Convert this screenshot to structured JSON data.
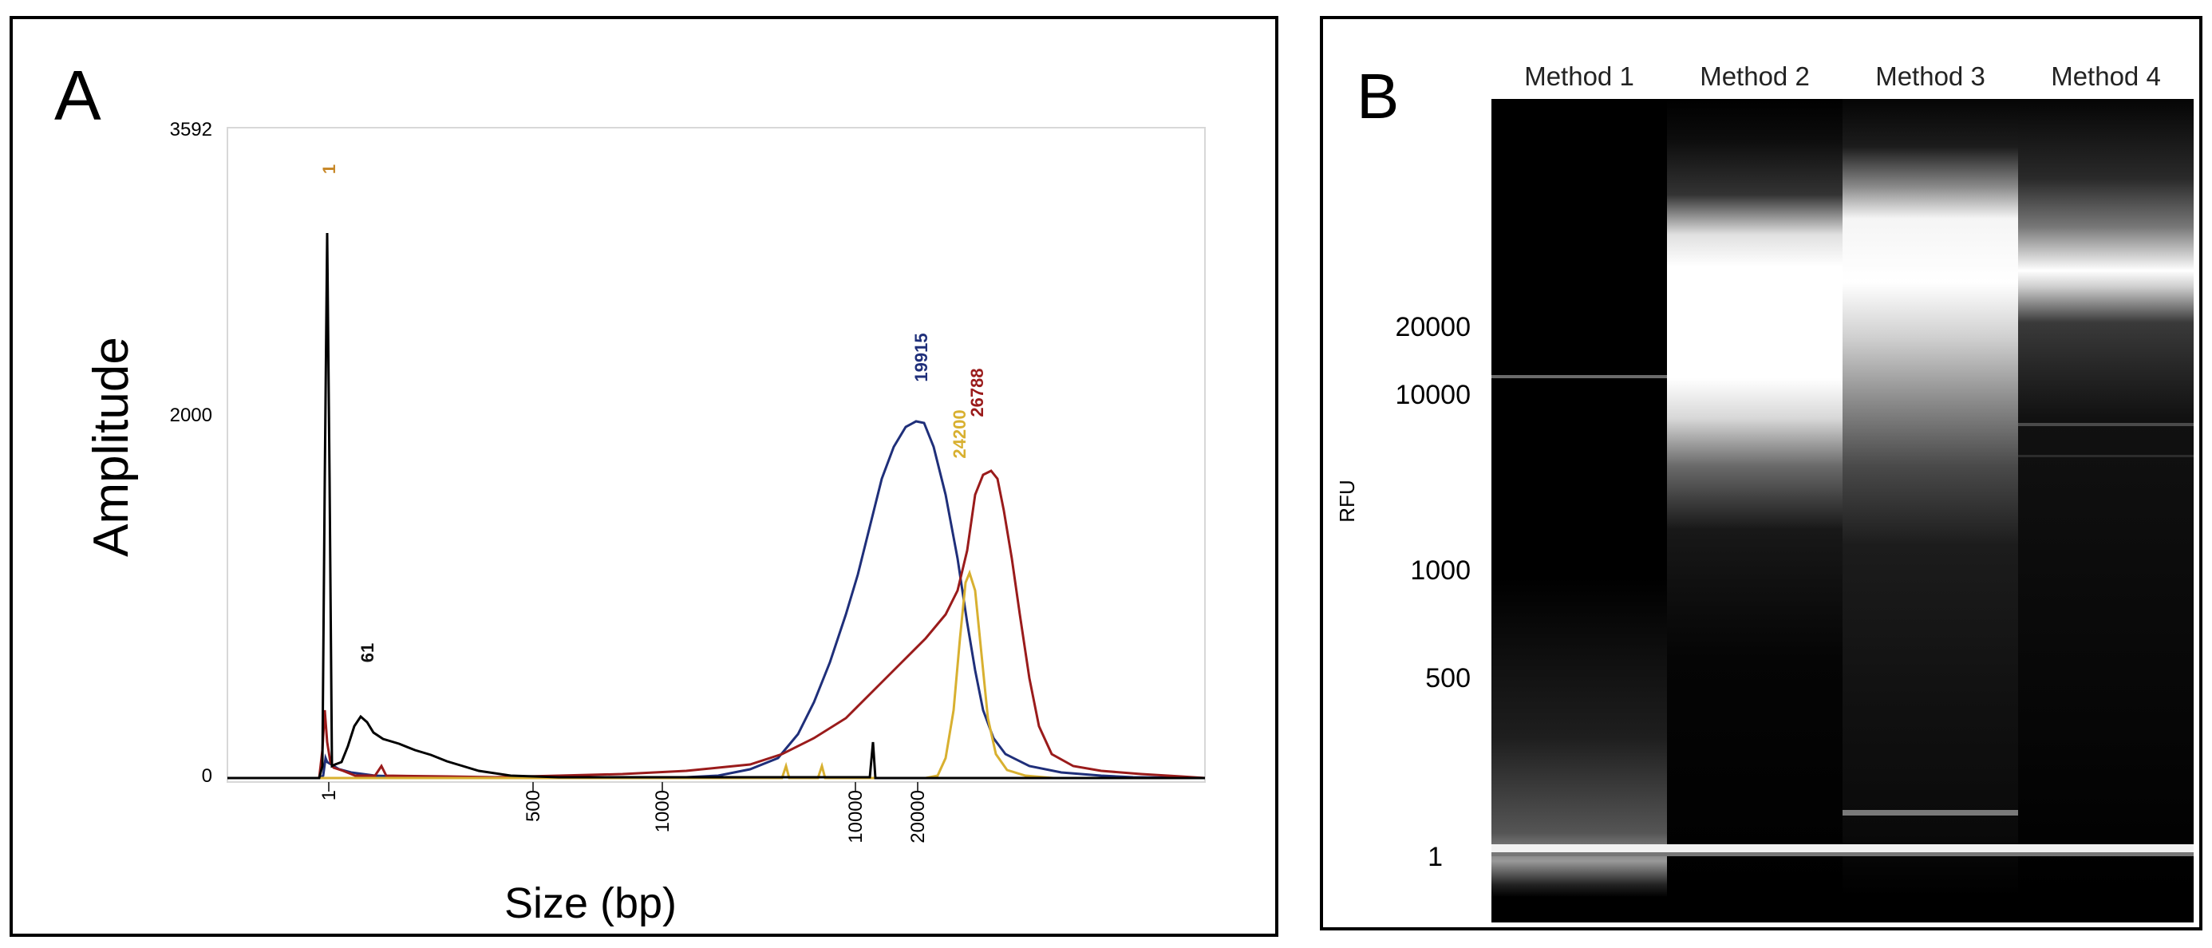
{
  "panels": {
    "A": {
      "label": "A",
      "chart_data": {
        "type": "line",
        "title": "",
        "xlabel": "Size (bp)",
        "ylabel": "Amplitude",
        "ylim": [
          0,
          3592
        ],
        "y_ticks": [
          "0",
          "2000",
          "3592"
        ],
        "x_ticks": [
          "1",
          "500",
          "1000",
          "10000",
          "20000"
        ],
        "peak_labels": [
          {
            "text": "1",
            "color": "#c8892a"
          },
          {
            "text": "61",
            "color": "#111111"
          },
          {
            "text": "19915",
            "color": "#1f2f7a"
          },
          {
            "text": "24200",
            "color": "#d8b030"
          },
          {
            "text": "26788",
            "color": "#9a1b1b"
          }
        ],
        "series": [
          {
            "name": "blue",
            "color": "#1f2f7a",
            "peak_size_bp": 19915,
            "peak_amplitude": 1930
          },
          {
            "name": "red",
            "color": "#9a1b1b",
            "peak_size_bp": 26788,
            "peak_amplitude": 1700
          },
          {
            "name": "gold",
            "color": "#d8b030",
            "peak_size_bp": 24200,
            "peak_amplitude": 1080
          },
          {
            "name": "black",
            "color": "#000000",
            "peak_size_bp": 1,
            "peak_amplitude": 3110
          }
        ]
      }
    },
    "B": {
      "label": "B",
      "chart_data": {
        "type": "heatmap",
        "ylabel": "RFU",
        "lanes": [
          "Method 1",
          "Method 2",
          "Method 3",
          "Method 4"
        ],
        "y_ticks": [
          "20000",
          "10000",
          "1000",
          "500",
          "1"
        ]
      }
    }
  }
}
